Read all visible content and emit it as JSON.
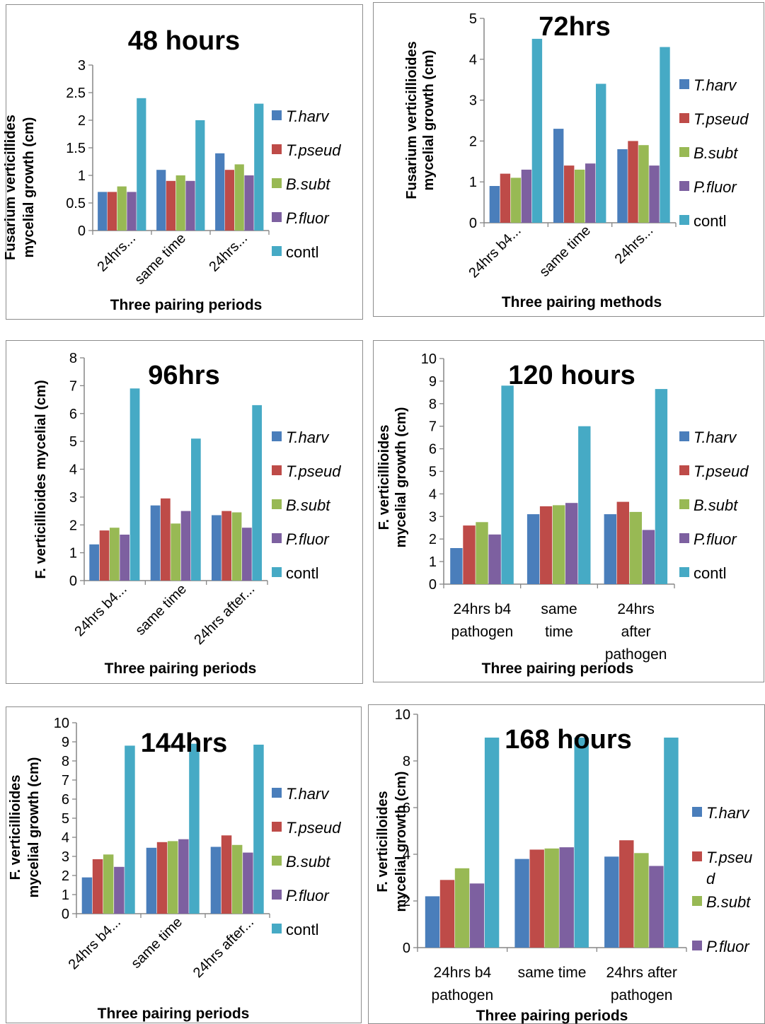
{
  "colors": {
    "T.harv": "#4a7ebb",
    "T.pseud": "#be4b48",
    "B.subt": "#98b954",
    "P.fluor": "#7d60a0",
    "contl": "#46aac5",
    "axis": "#868686",
    "border": "#8c8c8c"
  },
  "chart_data": [
    {
      "type": "bar",
      "title": "48 hours",
      "ylabel": "Fusarium verticillides mycelial growth (cm)",
      "xlabel": "Three pairing periods",
      "categories": [
        "24hrs...",
        "same time",
        "24hrs..."
      ],
      "ylim": [
        0,
        3
      ],
      "yticks": [
        "0",
        "0.5",
        "1",
        "1.5",
        "2",
        "2.5",
        "3"
      ],
      "series": [
        {
          "name": "T.harv",
          "values": [
            0.7,
            1.1,
            1.4
          ]
        },
        {
          "name": "T.pseud",
          "values": [
            0.7,
            0.9,
            1.1
          ]
        },
        {
          "name": "B.subt",
          "values": [
            0.8,
            1.0,
            1.2
          ]
        },
        {
          "name": "P.fluor",
          "values": [
            0.7,
            0.9,
            1.0
          ]
        },
        {
          "name": "contl",
          "values": [
            2.4,
            2.0,
            2.3
          ]
        }
      ],
      "legend": "right",
      "grid": false
    },
    {
      "type": "bar",
      "title": "72hrs",
      "ylabel": "Fusarium verticillioides mycelial growth (cm)",
      "xlabel": "Three pairing methods",
      "categories": [
        "24hrs b4...",
        "same time",
        "24hrs..."
      ],
      "ylim": [
        0,
        5
      ],
      "yticks": [
        "0",
        "1",
        "2",
        "3",
        "4",
        "5"
      ],
      "series": [
        {
          "name": "T.harv",
          "values": [
            0.9,
            2.3,
            1.8
          ]
        },
        {
          "name": "T.pseud",
          "values": [
            1.2,
            1.4,
            2.0
          ]
        },
        {
          "name": "B.subt",
          "values": [
            1.1,
            1.3,
            1.9
          ]
        },
        {
          "name": "P.fluor",
          "values": [
            1.3,
            1.45,
            1.4
          ]
        },
        {
          "name": "contl",
          "values": [
            4.5,
            3.4,
            4.3
          ]
        }
      ],
      "legend": "right",
      "grid": false
    },
    {
      "type": "bar",
      "title": "96hrs",
      "ylabel": "F. verticillioides mycelial (cm)",
      "xlabel": "Three pairing periods",
      "categories": [
        "24hrs b4...",
        "same time",
        "24hrs after..."
      ],
      "ylim": [
        0,
        8
      ],
      "yticks": [
        "0",
        "1",
        "2",
        "3",
        "4",
        "5",
        "6",
        "7",
        "8"
      ],
      "series": [
        {
          "name": "T.harv",
          "values": [
            1.3,
            2.7,
            2.35
          ]
        },
        {
          "name": "T.pseud",
          "values": [
            1.8,
            2.95,
            2.5
          ]
        },
        {
          "name": "B.subt",
          "values": [
            1.9,
            2.05,
            2.45
          ]
        },
        {
          "name": "P.fluor",
          "values": [
            1.65,
            2.5,
            1.9
          ]
        },
        {
          "name": "contl",
          "values": [
            6.9,
            5.1,
            6.3
          ]
        }
      ],
      "legend": "right",
      "grid": false
    },
    {
      "type": "bar",
      "title": "120 hours",
      "ylabel": "F. verticillioides mycelial growth (cm)",
      "xlabel": "Three pairing periods",
      "categories": [
        "24hrs b4\npathogen",
        "same\ntime",
        "24hrs\nafter\npathogen"
      ],
      "ylim": [
        0,
        10
      ],
      "yticks": [
        "0",
        "1",
        "2",
        "3",
        "4",
        "5",
        "6",
        "7",
        "8",
        "9",
        "10"
      ],
      "series": [
        {
          "name": "T.harv",
          "values": [
            1.6,
            3.1,
            3.1
          ]
        },
        {
          "name": "T.pseud",
          "values": [
            2.6,
            3.45,
            3.65
          ]
        },
        {
          "name": "B.subt",
          "values": [
            2.75,
            3.5,
            3.2
          ]
        },
        {
          "name": "P.fluor",
          "values": [
            2.2,
            3.6,
            2.4
          ]
        },
        {
          "name": "contl",
          "values": [
            8.8,
            7.0,
            8.65
          ]
        }
      ],
      "legend": "right",
      "grid": false
    },
    {
      "type": "bar",
      "title": "144hrs",
      "ylabel": "F. verticillioides mycelial growth (cm)",
      "xlabel": "Three pairing periods",
      "categories": [
        "24hrs b4...",
        "same time",
        "24hrs after..."
      ],
      "ylim": [
        0,
        10
      ],
      "yticks": [
        "0",
        "1",
        "2",
        "3",
        "4",
        "5",
        "6",
        "7",
        "8",
        "9",
        "10"
      ],
      "series": [
        {
          "name": "T.harv",
          "values": [
            1.9,
            3.45,
            3.5
          ]
        },
        {
          "name": "T.pseud",
          "values": [
            2.85,
            3.75,
            4.1
          ]
        },
        {
          "name": "B.subt",
          "values": [
            3.1,
            3.8,
            3.6
          ]
        },
        {
          "name": "P.fluor",
          "values": [
            2.45,
            3.9,
            3.2
          ]
        },
        {
          "name": "contl",
          "values": [
            8.8,
            8.9,
            8.85
          ]
        }
      ],
      "legend": "right",
      "grid": false
    },
    {
      "type": "bar",
      "title": "168 hours",
      "ylabel": "F. verticilloides mycelial growth (cm)",
      "xlabel": "Three pairing periods",
      "categories": [
        "24hrs b4\npathogen",
        "same time",
        "24hrs after\npathogen"
      ],
      "ylim": [
        0,
        10
      ],
      "yticks": [
        "0",
        "2",
        "4",
        "6",
        "8",
        "10"
      ],
      "series": [
        {
          "name": "T.harv",
          "values": [
            2.2,
            3.8,
            3.9
          ]
        },
        {
          "name": "T.pseud",
          "values": [
            2.9,
            4.2,
            4.6
          ]
        },
        {
          "name": "B.subt",
          "values": [
            3.4,
            4.25,
            4.05
          ]
        },
        {
          "name": "P.fluor",
          "values": [
            2.75,
            4.3,
            3.5
          ]
        },
        {
          "name": "contl",
          "values": [
            9.0,
            9.0,
            9.0
          ]
        }
      ],
      "legend": "right",
      "legend_entries": [
        "T.harv",
        "T.pseu\nd",
        "B.subt",
        "P.fluor"
      ],
      "grid": false
    }
  ]
}
